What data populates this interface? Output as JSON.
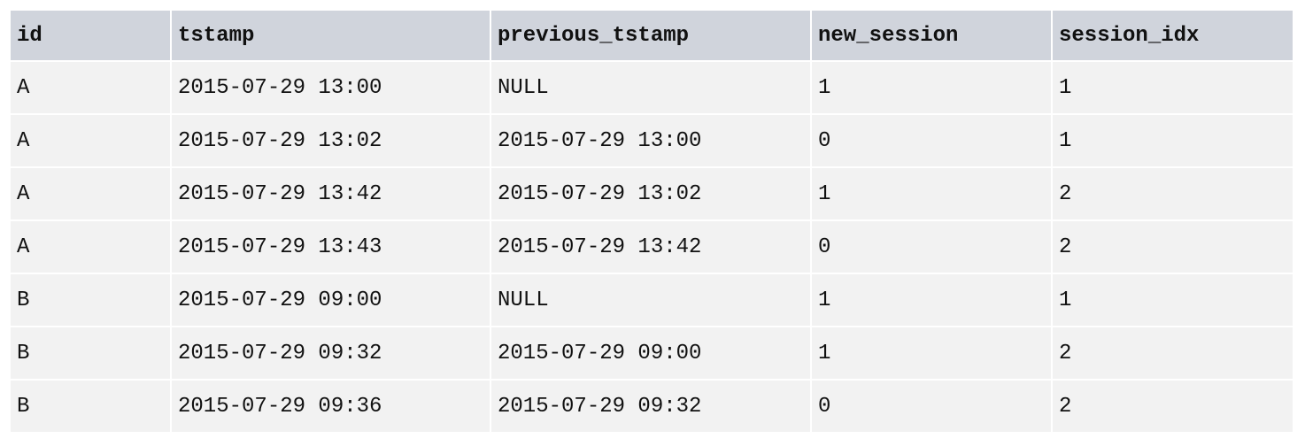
{
  "table": {
    "headers": [
      "id",
      "tstamp",
      "previous_tstamp",
      "new_session",
      "session_idx"
    ],
    "rows": [
      [
        "A",
        "2015-07-29 13:00",
        "NULL",
        "1",
        "1"
      ],
      [
        "A",
        "2015-07-29 13:02",
        "2015-07-29 13:00",
        "0",
        "1"
      ],
      [
        "A",
        "2015-07-29 13:42",
        "2015-07-29 13:02",
        "1",
        "2"
      ],
      [
        "A",
        "2015-07-29 13:43",
        "2015-07-29 13:42",
        "0",
        "2"
      ],
      [
        "B",
        "2015-07-29 09:00",
        "NULL",
        "1",
        "1"
      ],
      [
        "B",
        "2015-07-29 09:32",
        "2015-07-29 09:00",
        "1",
        "2"
      ],
      [
        "B",
        "2015-07-29 09:36",
        "2015-07-29 09:32",
        "0",
        "2"
      ]
    ]
  }
}
